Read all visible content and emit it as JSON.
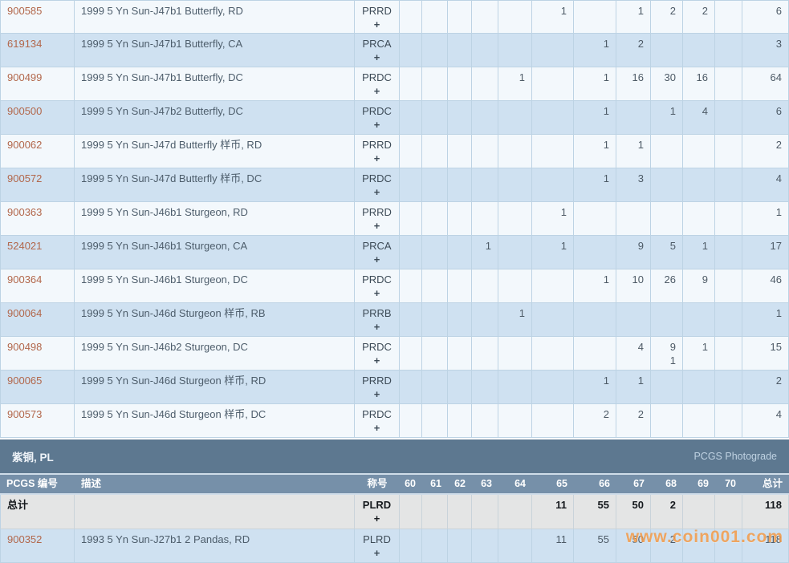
{
  "columns": {
    "id": "PCGS 编号",
    "desc": "描述",
    "desig": "称号",
    "grades": [
      "60",
      "61",
      "62",
      "63",
      "64",
      "65",
      "66",
      "67",
      "68",
      "69",
      "70"
    ],
    "total": "总计"
  },
  "upper_table": {
    "rows": [
      {
        "id": "900585",
        "desc": "1999 5 Yn Sun-J47b1 Butterfly, RD",
        "desig": "PRRD",
        "plus": "+",
        "values": {
          "65": "1",
          "67": "1",
          "68": "2",
          "69": "2"
        },
        "plus_values": {},
        "total": "6"
      },
      {
        "id": "619134",
        "desc": "1999 5 Yn Sun-J47b1 Butterfly, CA",
        "desig": "PRCA",
        "plus": "+",
        "values": {
          "66": "1",
          "67": "2"
        },
        "plus_values": {},
        "total": "3"
      },
      {
        "id": "900499",
        "desc": "1999 5 Yn Sun-J47b1 Butterfly, DC",
        "desig": "PRDC",
        "plus": "+",
        "values": {
          "64": "1",
          "66": "1",
          "67": "16",
          "68": "30",
          "69": "16"
        },
        "plus_values": {},
        "total": "64"
      },
      {
        "id": "900500",
        "desc": "1999 5 Yn Sun-J47b2 Butterfly, DC",
        "desig": "PRDC",
        "plus": "+",
        "values": {
          "66": "1",
          "68": "1",
          "69": "4"
        },
        "plus_values": {},
        "total": "6"
      },
      {
        "id": "900062",
        "desc": "1999 5 Yn Sun-J47d Butterfly 样币, RD",
        "desig": "PRRD",
        "plus": "+",
        "values": {
          "66": "1",
          "67": "1"
        },
        "plus_values": {},
        "total": "2"
      },
      {
        "id": "900572",
        "desc": "1999 5 Yn Sun-J47d Butterfly 样币, DC",
        "desig": "PRDC",
        "plus": "+",
        "values": {
          "66": "1",
          "67": "3"
        },
        "plus_values": {},
        "total": "4"
      },
      {
        "id": "900363",
        "desc": "1999 5 Yn Sun-J46b1 Sturgeon, RD",
        "desig": "PRRD",
        "plus": "+",
        "values": {
          "65": "1"
        },
        "plus_values": {},
        "total": "1"
      },
      {
        "id": "524021",
        "desc": "1999 5 Yn Sun-J46b1 Sturgeon, CA",
        "desig": "PRCA",
        "plus": "+",
        "values": {
          "63": "1",
          "65": "1",
          "67": "9",
          "68": "5",
          "69": "1"
        },
        "plus_values": {},
        "total": "17"
      },
      {
        "id": "900364",
        "desc": "1999 5 Yn Sun-J46b1 Sturgeon, DC",
        "desig": "PRDC",
        "plus": "+",
        "values": {
          "66": "1",
          "67": "10",
          "68": "26",
          "69": "9"
        },
        "plus_values": {},
        "total": "46"
      },
      {
        "id": "900064",
        "desc": "1999 5 Yn Sun-J46d Sturgeon 样币, RB",
        "desig": "PRRB",
        "plus": "+",
        "values": {
          "64": "1"
        },
        "plus_values": {},
        "total": "1"
      },
      {
        "id": "900498",
        "desc": "1999 5 Yn Sun-J46b2 Sturgeon, DC",
        "desig": "PRDC",
        "plus": "+",
        "values": {
          "67": "4",
          "68": "9",
          "69": "1"
        },
        "plus_values": {
          "68": "1"
        },
        "total": "15"
      },
      {
        "id": "900065",
        "desc": "1999 5 Yn Sun-J46d Sturgeon 样币, RD",
        "desig": "PRRD",
        "plus": "+",
        "values": {
          "66": "1",
          "67": "1"
        },
        "plus_values": {},
        "total": "2"
      },
      {
        "id": "900573",
        "desc": "1999 5 Yn Sun-J46d Sturgeon 样币, DC",
        "desig": "PRDC",
        "plus": "+",
        "values": {
          "66": "2",
          "67": "2"
        },
        "plus_values": {},
        "total": "4"
      }
    ]
  },
  "section": {
    "title": "紫铜, PL",
    "right_label": "PCGS Photograde"
  },
  "lower_table": {
    "total_row": {
      "id": "总计",
      "desc": "",
      "desig": "PLRD",
      "plus": "+",
      "values": {
        "65": "11",
        "66": "55",
        "67": "50",
        "68": "2"
      },
      "plus_values": {},
      "total": "118"
    },
    "rows": [
      {
        "id": "900352",
        "desc": "1993 5 Yn Sun-J27b1 2 Pandas, RD",
        "desig": "PLRD",
        "plus": "+",
        "values": {
          "65": "11",
          "66": "55",
          "67": "50",
          "68": "2"
        },
        "plus_values": {},
        "total": "118"
      }
    ]
  },
  "watermark": {
    "text": "www.coin001.com"
  },
  "colors": {
    "link": "#b2674b",
    "section_header_bg": "#5d7890",
    "column_header_bg": "#7690a9",
    "row_blue": "#cfe1f1",
    "row_white": "#f3f8fc",
    "total_row_bg": "#e4e5e5",
    "grid_border": "#bdd3e4",
    "watermark_orange": "#f2943b"
  }
}
